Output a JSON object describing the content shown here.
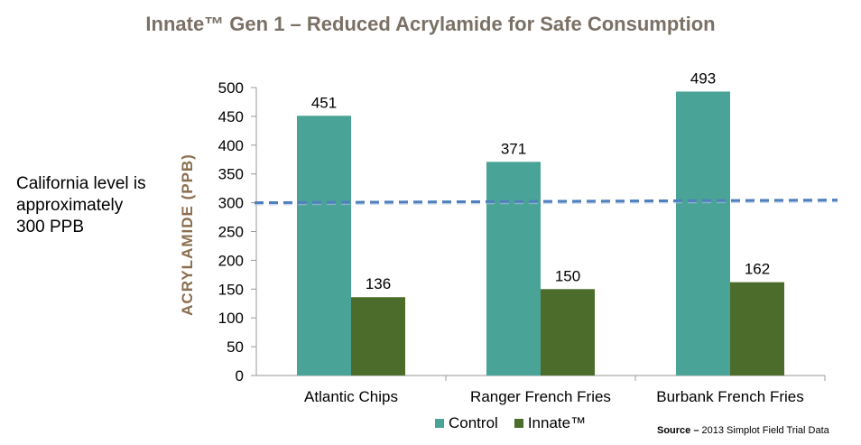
{
  "title": "Innate™ Gen 1 – Reduced Acrylamide for Safe Consumption",
  "side_note": "California level is approximately 300 PPB",
  "source_label": "Source –",
  "source_text": "2013 Simplot Field Trial Data",
  "colors": {
    "control": "#4aa397",
    "innate": "#4b6c2a",
    "reference_line": "#4f7fbd",
    "title": "#7a7065",
    "ylabel": "#8a6e4e"
  },
  "chart_data": {
    "type": "bar",
    "title": "Innate™ Gen 1 – Reduced Acrylamide for Safe Consumption",
    "ylabel": "ACRYLAMIDE (PPB)",
    "xlabel": "",
    "categories": [
      "Atlantic Chips",
      "Ranger French Fries",
      "Burbank French Fries"
    ],
    "series": [
      {
        "name": "Control",
        "values": [
          451,
          371,
          493
        ]
      },
      {
        "name": "Innate™",
        "values": [
          136,
          150,
          162
        ]
      }
    ],
    "ylim": [
      0,
      500
    ],
    "yticks": [
      "0",
      "50",
      "100",
      "150",
      "200",
      "250",
      "300",
      "350",
      "400",
      "450",
      "500"
    ],
    "reference_line": 300,
    "grid": false,
    "legend_position": "bottom"
  }
}
